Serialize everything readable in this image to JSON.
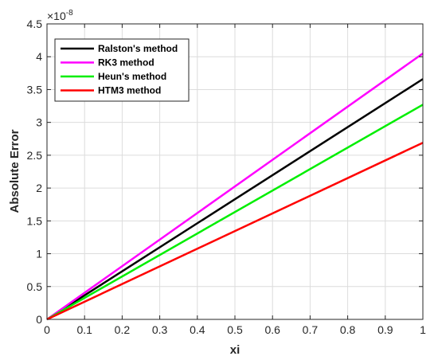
{
  "chart_data": {
    "type": "line",
    "title": "",
    "xlabel": "xi",
    "ylabel": "Absolute Error",
    "y_scale_exponent": "×10",
    "y_scale_power": "-8",
    "xlim": [
      0,
      1
    ],
    "ylim": [
      0,
      4.5
    ],
    "x_ticks": [
      0,
      0.1,
      0.2,
      0.3,
      0.4,
      0.5,
      0.6,
      0.7,
      0.8,
      0.9,
      1
    ],
    "x_tick_labels": [
      "0",
      "0.1",
      "0.2",
      "0.3",
      "0.4",
      "0.5",
      "0.6",
      "0.7",
      "0.8",
      "0.9",
      "1"
    ],
    "y_ticks": [
      0,
      0.5,
      1,
      1.5,
      2,
      2.5,
      3,
      3.5,
      4,
      4.5
    ],
    "y_tick_labels": [
      "0",
      "0.5",
      "1",
      "1.5",
      "2",
      "2.5",
      "3",
      "3.5",
      "4",
      "4.5"
    ],
    "grid": true,
    "legend_position": "top-left",
    "x": [
      0,
      1
    ],
    "series": [
      {
        "name": "Ralston's method",
        "values": [
          0,
          3.66
        ],
        "color": "#000000"
      },
      {
        "name": "RK3 method",
        "values": [
          0,
          4.05
        ],
        "color": "#ff00ff"
      },
      {
        "name": "Heun's method",
        "values": [
          0,
          3.27
        ],
        "color": "#00ee00"
      },
      {
        "name": "HTM3 method",
        "values": [
          0,
          2.69
        ],
        "color": "#ff0000"
      }
    ]
  }
}
